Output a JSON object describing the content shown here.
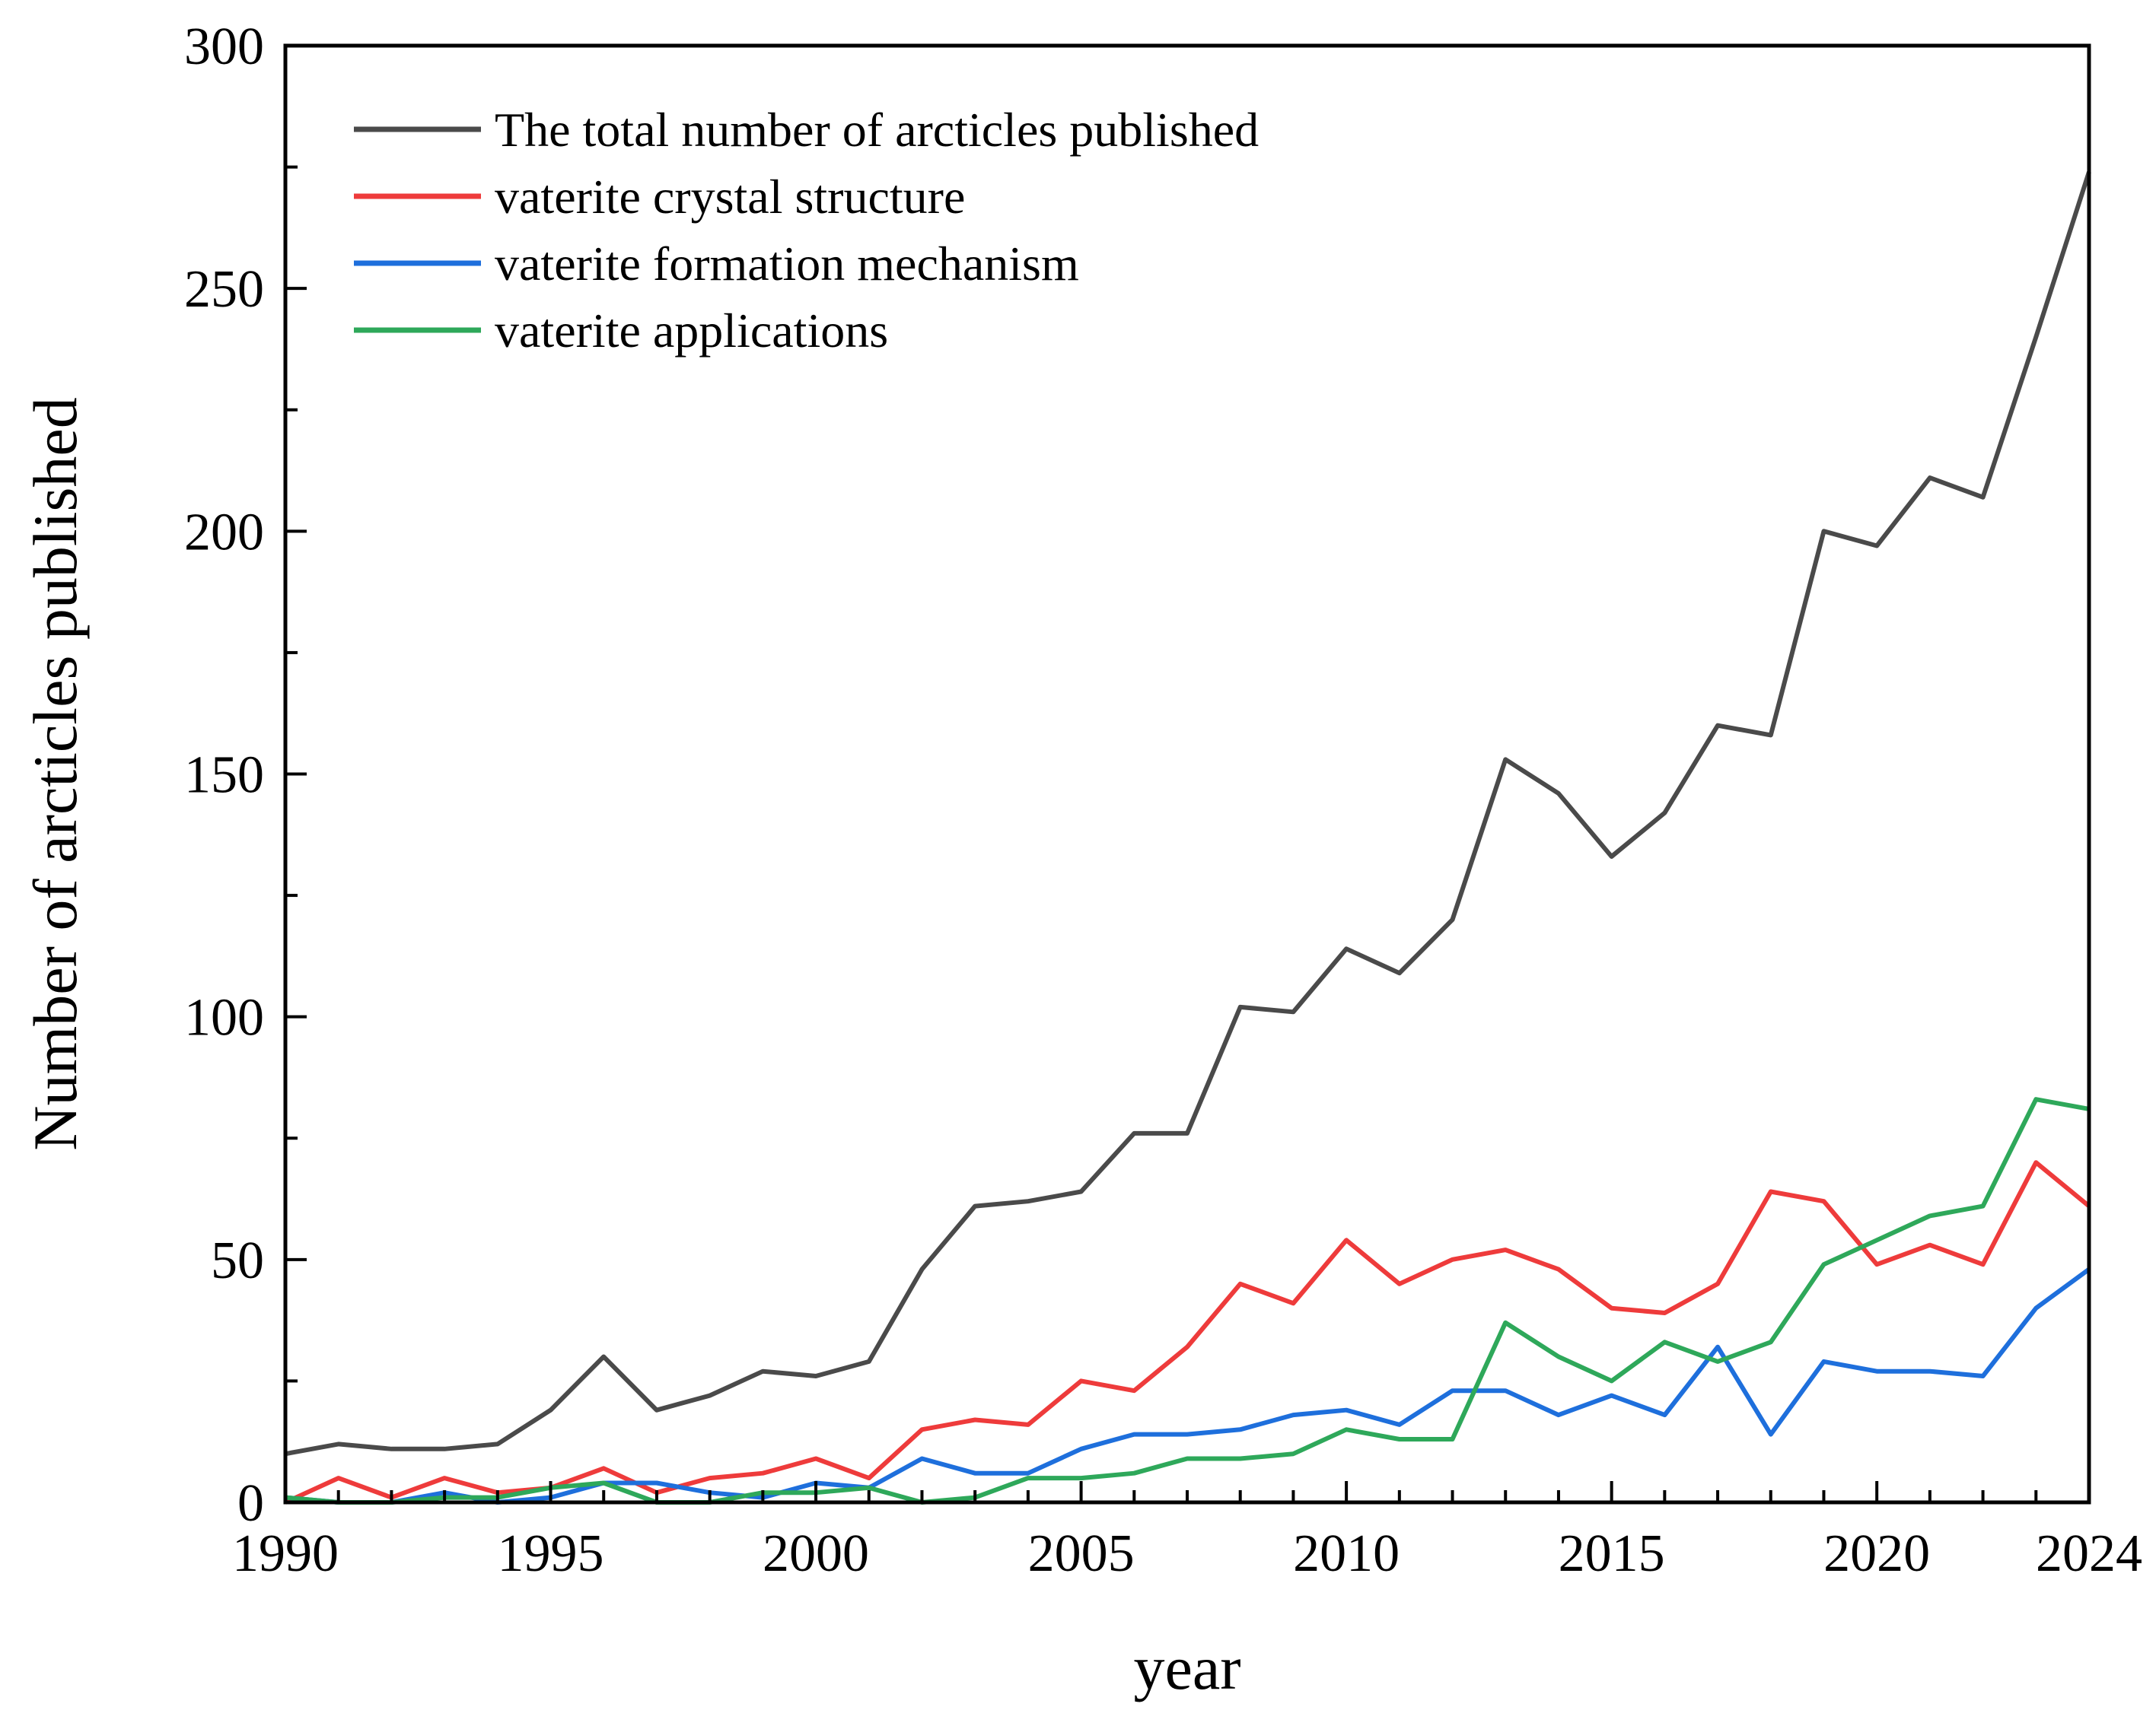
{
  "chart_data": {
    "type": "line",
    "title": "",
    "xlabel": "year",
    "ylabel": "Number of arcticles published",
    "xlim": [
      1990,
      2024
    ],
    "ylim": [
      0,
      300
    ],
    "x_ticks": [
      1990,
      1995,
      2000,
      2005,
      2010,
      2015,
      2020,
      2024
    ],
    "y_ticks": [
      0,
      50,
      100,
      150,
      200,
      250,
      300
    ],
    "grid": false,
    "legend_position": "top-left",
    "x": [
      1990,
      1991,
      1992,
      1993,
      1994,
      1995,
      1996,
      1997,
      1998,
      1999,
      2000,
      2001,
      2002,
      2003,
      2004,
      2005,
      2006,
      2007,
      2008,
      2009,
      2010,
      2011,
      2012,
      2013,
      2014,
      2015,
      2016,
      2017,
      2018,
      2019,
      2020,
      2021,
      2022,
      2023,
      2024
    ],
    "series": [
      {
        "name": "The total number of arcticles published",
        "color": "#4a4a4a",
        "values": [
          10,
          12,
          11,
          11,
          12,
          19,
          30,
          19,
          22,
          27,
          26,
          29,
          48,
          61,
          62,
          64,
          76,
          76,
          102,
          101,
          114,
          109,
          120,
          153,
          146,
          133,
          142,
          160,
          158,
          200,
          197,
          211,
          207,
          240,
          274
        ]
      },
      {
        "name": "vaterite crystal structure",
        "color": "#ee3b3b",
        "values": [
          0,
          5,
          1,
          5,
          2,
          3,
          7,
          2,
          5,
          6,
          9,
          5,
          15,
          17,
          16,
          25,
          23,
          32,
          45,
          41,
          54,
          45,
          50,
          52,
          48,
          40,
          39,
          45,
          64,
          62,
          49,
          53,
          49,
          70,
          61
        ]
      },
      {
        "name": "vaterite formation mechanism",
        "color": "#1e6fdc",
        "values": [
          1,
          0,
          0,
          2,
          0,
          1,
          4,
          4,
          2,
          1,
          4,
          3,
          9,
          6,
          6,
          11,
          14,
          14,
          15,
          18,
          19,
          16,
          23,
          23,
          18,
          22,
          18,
          32,
          14,
          29,
          27,
          27,
          26,
          40,
          48
        ]
      },
      {
        "name": "vaterite applications",
        "color": "#2ea85a",
        "values": [
          1,
          0,
          0,
          1,
          1,
          3,
          4,
          0,
          0,
          2,
          2,
          3,
          0,
          1,
          5,
          5,
          6,
          9,
          9,
          10,
          15,
          13,
          13,
          37,
          30,
          25,
          33,
          29,
          33,
          49,
          54,
          59,
          61,
          83,
          81
        ]
      }
    ]
  }
}
